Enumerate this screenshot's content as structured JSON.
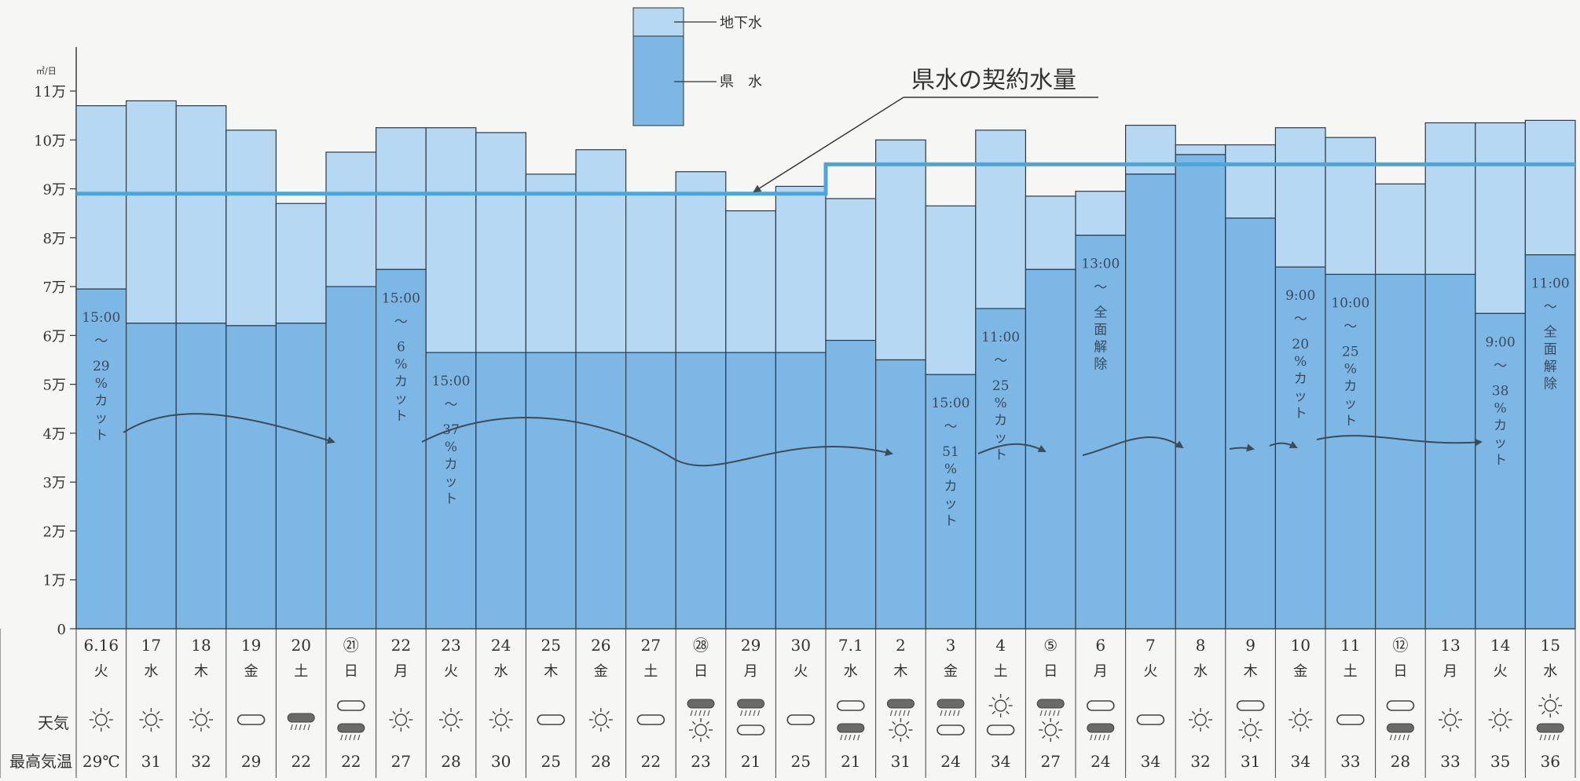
{
  "chart_data": {
    "type": "bar",
    "y_unit": "㎥/日",
    "y_ticks": [
      "0",
      "1万",
      "2万",
      "3万",
      "4万",
      "5万",
      "6万",
      "7万",
      "8万",
      "9万",
      "10万",
      "11万"
    ],
    "ylim": [
      0,
      110000
    ],
    "legend": [
      {
        "label": "地下水",
        "color": "#b6d8f2"
      },
      {
        "label": "県　水",
        "color": "#7db7e5"
      }
    ],
    "series": [
      {
        "name": "県　水",
        "values": [
          69500,
          62500,
          62500,
          62000,
          62500,
          70000,
          73500,
          56500,
          56500,
          56500,
          56500,
          56500,
          56500,
          56500,
          56500,
          59000,
          55000,
          52000,
          65500,
          73500,
          80500,
          93000,
          97000,
          84000,
          74000,
          72500,
          72500,
          72500,
          64500,
          76500
        ]
      },
      {
        "name": "地下水",
        "values": [
          37500,
          45500,
          44500,
          40000,
          24500,
          27500,
          29000,
          46000,
          45000,
          36500,
          41500,
          32500,
          37000,
          29000,
          34000,
          29000,
          45000,
          34500,
          36500,
          15000,
          9000,
          10000,
          2000,
          15000,
          28500,
          28000,
          18500,
          31000,
          39000,
          27500
        ]
      }
    ],
    "contract": {
      "label": "県水の契約水量",
      "segments": [
        {
          "from": 0,
          "to": 14,
          "value": 89000
        },
        {
          "from": 15,
          "to": 29,
          "value": 95000
        }
      ]
    },
    "categories": [
      {
        "date": "6.16",
        "dow": "火",
        "weather": [
          "sun"
        ],
        "temp": "29℃"
      },
      {
        "date": "17",
        "dow": "水",
        "weather": [
          "sun"
        ],
        "temp": "31"
      },
      {
        "date": "18",
        "dow": "木",
        "weather": [
          "sun"
        ],
        "temp": "32"
      },
      {
        "date": "19",
        "dow": "金",
        "weather": [
          "cloud"
        ],
        "temp": "29"
      },
      {
        "date": "20",
        "dow": "土",
        "weather": [
          "rain"
        ],
        "temp": "22"
      },
      {
        "date": "㉑",
        "dow": "日",
        "weather": [
          "cloud",
          "rain"
        ],
        "temp": "22"
      },
      {
        "date": "22",
        "dow": "月",
        "weather": [
          "sun"
        ],
        "temp": "27"
      },
      {
        "date": "23",
        "dow": "火",
        "weather": [
          "sun"
        ],
        "temp": "28"
      },
      {
        "date": "24",
        "dow": "水",
        "weather": [
          "sun"
        ],
        "temp": "30"
      },
      {
        "date": "25",
        "dow": "木",
        "weather": [
          "cloud"
        ],
        "temp": "25"
      },
      {
        "date": "26",
        "dow": "金",
        "weather": [
          "sun"
        ],
        "temp": "28"
      },
      {
        "date": "27",
        "dow": "土",
        "weather": [
          "cloud"
        ],
        "temp": "22"
      },
      {
        "date": "㉘",
        "dow": "日",
        "weather": [
          "rain",
          "sun"
        ],
        "temp": "23"
      },
      {
        "date": "29",
        "dow": "月",
        "weather": [
          "rain",
          "cloud"
        ],
        "temp": "21"
      },
      {
        "date": "30",
        "dow": "火",
        "weather": [
          "cloud"
        ],
        "temp": "25"
      },
      {
        "date": "7.1",
        "dow": "水",
        "weather": [
          "cloud",
          "rain"
        ],
        "temp": "21"
      },
      {
        "date": "2",
        "dow": "木",
        "weather": [
          "rain",
          "sun"
        ],
        "temp": "31"
      },
      {
        "date": "3",
        "dow": "金",
        "weather": [
          "rain",
          "cloud"
        ],
        "temp": "24"
      },
      {
        "date": "4",
        "dow": "土",
        "weather": [
          "sun",
          "cloud"
        ],
        "temp": "34"
      },
      {
        "date": "⑤",
        "dow": "日",
        "weather": [
          "rain",
          "sun"
        ],
        "temp": "27"
      },
      {
        "date": "6",
        "dow": "月",
        "weather": [
          "cloud",
          "rain"
        ],
        "temp": "24"
      },
      {
        "date": "7",
        "dow": "火",
        "weather": [
          "cloud"
        ],
        "temp": "34"
      },
      {
        "date": "8",
        "dow": "水",
        "weather": [
          "sun"
        ],
        "temp": "32"
      },
      {
        "date": "9",
        "dow": "木",
        "weather": [
          "cloud",
          "sun"
        ],
        "temp": "31"
      },
      {
        "date": "10",
        "dow": "金",
        "weather": [
          "sun"
        ],
        "temp": "34"
      },
      {
        "date": "11",
        "dow": "土",
        "weather": [
          "cloud"
        ],
        "temp": "33"
      },
      {
        "date": "⑫",
        "dow": "日",
        "weather": [
          "cloud",
          "rain"
        ],
        "temp": "28"
      },
      {
        "date": "13",
        "dow": "月",
        "weather": [
          "sun"
        ],
        "temp": "33"
      },
      {
        "date": "14",
        "dow": "火",
        "weather": [
          "sun"
        ],
        "temp": "35"
      },
      {
        "date": "15",
        "dow": "水",
        "weather": [
          "sun",
          "rain"
        ],
        "temp": "36"
      }
    ],
    "row_labels": {
      "weather": "天気",
      "temp": "最高気温"
    },
    "annotations": [
      {
        "bar": 0,
        "time": "15:00",
        "pct": "29",
        "cut": "カット"
      },
      {
        "bar": 6,
        "time": "15:00",
        "pct": "6",
        "cut": "カット"
      },
      {
        "bar": 7,
        "time": "15:00",
        "pct": "37",
        "cut": "カット"
      },
      {
        "bar": 17,
        "time": "15:00",
        "pct": "51",
        "cut": "カット"
      },
      {
        "bar": 18,
        "time": "11:00",
        "pct": "25",
        "cut": "カット"
      },
      {
        "bar": 20,
        "time": "13:00",
        "pct": "",
        "cut": "全面解除"
      },
      {
        "bar": 24,
        "time": "9:00",
        "pct": "20",
        "cut": "カット"
      },
      {
        "bar": 25,
        "time": "10:00",
        "pct": "25",
        "cut": "カット"
      },
      {
        "bar": 28,
        "time": "9:00",
        "pct": "38",
        "cut": "カット"
      },
      {
        "bar": 29,
        "time": "11:00",
        "pct": "",
        "cut": "全面解除"
      }
    ],
    "annotation_tilde": "～",
    "annotation_pct_sign": "%"
  }
}
